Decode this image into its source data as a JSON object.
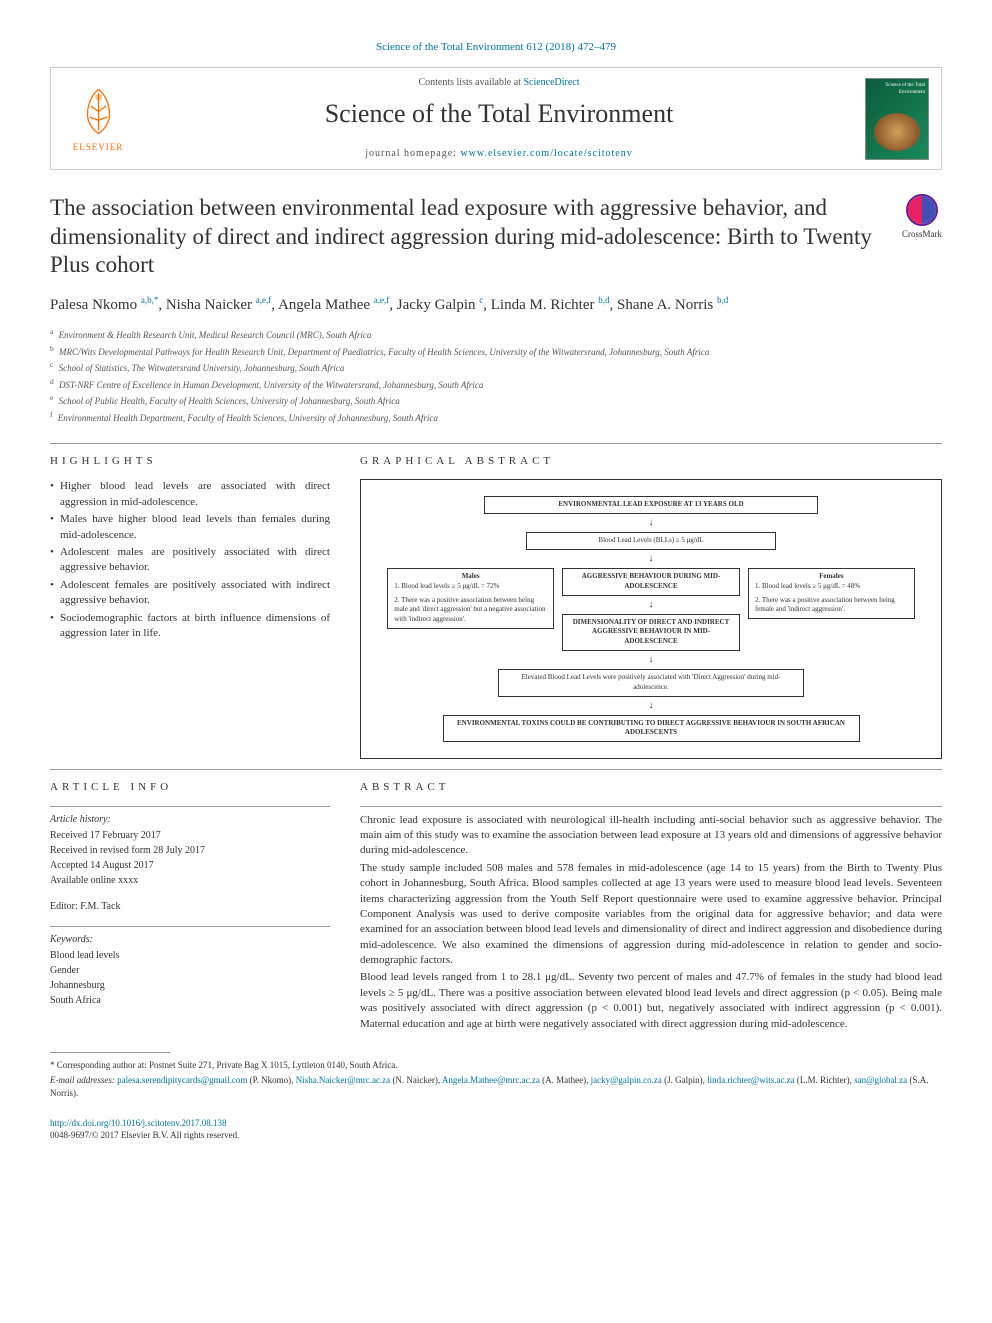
{
  "journal_ref": "Science of the Total Environment 612 (2018) 472–479",
  "header": {
    "contents_prefix": "Contents lists available at ",
    "contents_link": "ScienceDirect",
    "journal_name": "Science of the Total Environment",
    "homepage_prefix": "journal homepage: ",
    "homepage_url": "www.elsevier.com/locate/scitotenv",
    "publisher": "ELSEVIER",
    "cover_label": "Science of the Total Environment"
  },
  "crossmark_label": "CrossMark",
  "title": "The association between environmental lead exposure with aggressive behavior, and dimensionality of direct and indirect aggression during mid-adolescence: Birth to Twenty Plus cohort",
  "authors": [
    {
      "name": "Palesa Nkomo ",
      "sup": "a,b,",
      "corr": "*"
    },
    {
      "name": ", Nisha Naicker ",
      "sup": "a,e,f"
    },
    {
      "name": ", Angela Mathee ",
      "sup": "a,e,f"
    },
    {
      "name": ", Jacky Galpin ",
      "sup": "c"
    },
    {
      "name": ", Linda M. Richter ",
      "sup": "b,d"
    },
    {
      "name": ", Shane A. Norris ",
      "sup": "b,d"
    }
  ],
  "affiliations": [
    {
      "sup": "a",
      "text": "Environment & Health Research Unit, Medical Research Council (MRC), South Africa"
    },
    {
      "sup": "b",
      "text": "MRC/Wits Developmental Pathways for Health Research Unit, Department of Paediatrics, Faculty of Health Sciences, University of the Witwatersrand, Johannesburg, South Africa"
    },
    {
      "sup": "c",
      "text": "School of Statistics, The Witwatersrand University, Johannesburg, South Africa"
    },
    {
      "sup": "d",
      "text": "DST-NRF Centre of Excellence in Human Development, University of the Witwatersrand, Johannesburg, South Africa"
    },
    {
      "sup": "e",
      "text": "School of Public Health, Faculty of Health Sciences, University of Johannesburg, South Africa"
    },
    {
      "sup": "f",
      "text": "Environmental Health Department, Faculty of Health Sciences, University of Johannesburg, South Africa"
    }
  ],
  "highlights_head": "HIGHLIGHTS",
  "highlights": [
    "Higher blood lead levels are associated with direct aggression in mid-adolescence.",
    "Males have higher blood lead levels than females during mid-adolescence.",
    "Adolescent males are positively associated with direct aggressive behavior.",
    "Adolescent females are positively associated with indirect aggressive behavior.",
    "Sociodemographic factors at birth influence dimensions of aggression later in life."
  ],
  "graphical_head": "GRAPHICAL ABSTRACT",
  "graphical": {
    "top": "ENVIRONMENTAL LEAD EXPOSURE AT 13 YEARS OLD",
    "bll": "Blood Lead Levels (BLLs) ≥ 5 μg/dL",
    "males_head": "Males",
    "males_1": "1. Blood lead levels ≥ 5 μg/dL = 72%",
    "males_2": "2. There was a positive association between being male and 'direct aggression' but a negative association with 'indirect aggression'.",
    "center1": "AGGRESSIVE BEHAVIOUR DURING MID-ADOLESCENCE",
    "center2": "DIMENSIONALITY OF DIRECT AND INDIRECT AGGRESSIVE BEHAVIOUR IN MID-ADOLESCENCE",
    "females_head": "Females",
    "females_1": "1. Blood lead levels ≥ 5 μg/dL = 48%",
    "females_2": "2. There was a positive association between being female and 'indirect aggression'.",
    "result": "Elevated Blood Lead Levels were positively associated with 'Direct Aggression' during mid-adolescence.",
    "conclusion": "ENVIRONMENTAL TOXINS COULD BE CONTRIBUTING TO DIRECT AGGRESSIVE BEHAVIOUR IN SOUTH AFRICAN ADOLESCENTS"
  },
  "article_info_head": "ARTICLE INFO",
  "article_info": {
    "history_head": "Article history:",
    "received": "Received 17 February 2017",
    "revised": "Received in revised form 28 July 2017",
    "accepted": "Accepted 14 August 2017",
    "online": "Available online xxxx",
    "editor_label": "Editor: F.M. Tack",
    "keywords_head": "Keywords:",
    "keywords": [
      "Blood lead levels",
      "Gender",
      "Johannesburg",
      "South Africa"
    ]
  },
  "abstract_head": "ABSTRACT",
  "abstract": {
    "p1": "Chronic lead exposure is associated with neurological ill-health including anti-social behavior such as aggressive behavior. The main aim of this study was to examine the association between lead exposure at 13 years old and dimensions of aggressive behavior during mid-adolescence.",
    "p2": "The study sample included 508 males and 578 females in mid-adolescence (age 14 to 15 years) from the Birth to Twenty Plus cohort in Johannesburg, South Africa. Blood samples collected at age 13 years were used to measure blood lead levels. Seventeen items characterizing aggression from the Youth Self Report questionnaire were used to examine aggressive behavior. Principal Component Analysis was used to derive composite variables from the original data for aggressive behavior; and data were examined for an association between blood lead levels and dimensionality of direct and indirect aggression and disobedience during mid-adolescence. We also examined the dimensions of aggression during mid-adolescence in relation to gender and socio-demographic factors.",
    "p3": "Blood lead levels ranged from 1 to 28.1 μg/dL. Seventy two percent of males and 47.7% of females in the study had blood lead levels ≥ 5 μg/dL. There was a positive association between elevated blood lead levels and direct aggression (p < 0.05). Being male was positively associated with direct aggression (p < 0.001) but, negatively associated with indirect aggression (p < 0.001). Maternal education and age at birth were negatively associated with direct aggression during mid-adolescence."
  },
  "corresponding": {
    "label": "* Corresponding author at: Postnet Suite 271, Private Bag X 1015, Lyttleton 0140, South Africa.",
    "emails_label": "E-mail addresses: ",
    "emails": [
      {
        "addr": "palesa.serendipitycards@gmail.com",
        "who": " (P. Nkomo), "
      },
      {
        "addr": "Nisha.Naicker@mrc.ac.za",
        "who": " (N. Naicker), "
      },
      {
        "addr": "Angela.Mathee@mrc.ac.za",
        "who": " (A. Mathee), "
      },
      {
        "addr": "jacky@galpin.co.za",
        "who": " (J. Galpin), "
      },
      {
        "addr": "linda.richter@wits.ac.za",
        "who": " (L.M. Richter), "
      },
      {
        "addr": "san@global.za",
        "who": " (S.A. Norris)."
      }
    ]
  },
  "doi": {
    "url": "http://dx.doi.org/10.1016/j.scitotenv.2017.08.138",
    "issn": "0048-9697/© 2017 Elsevier B.V. All rights reserved."
  },
  "colors": {
    "link": "#007398",
    "elsevier_orange": "#ff6c00",
    "text": "#333333",
    "border": "#cccccc",
    "rule": "#999999"
  }
}
